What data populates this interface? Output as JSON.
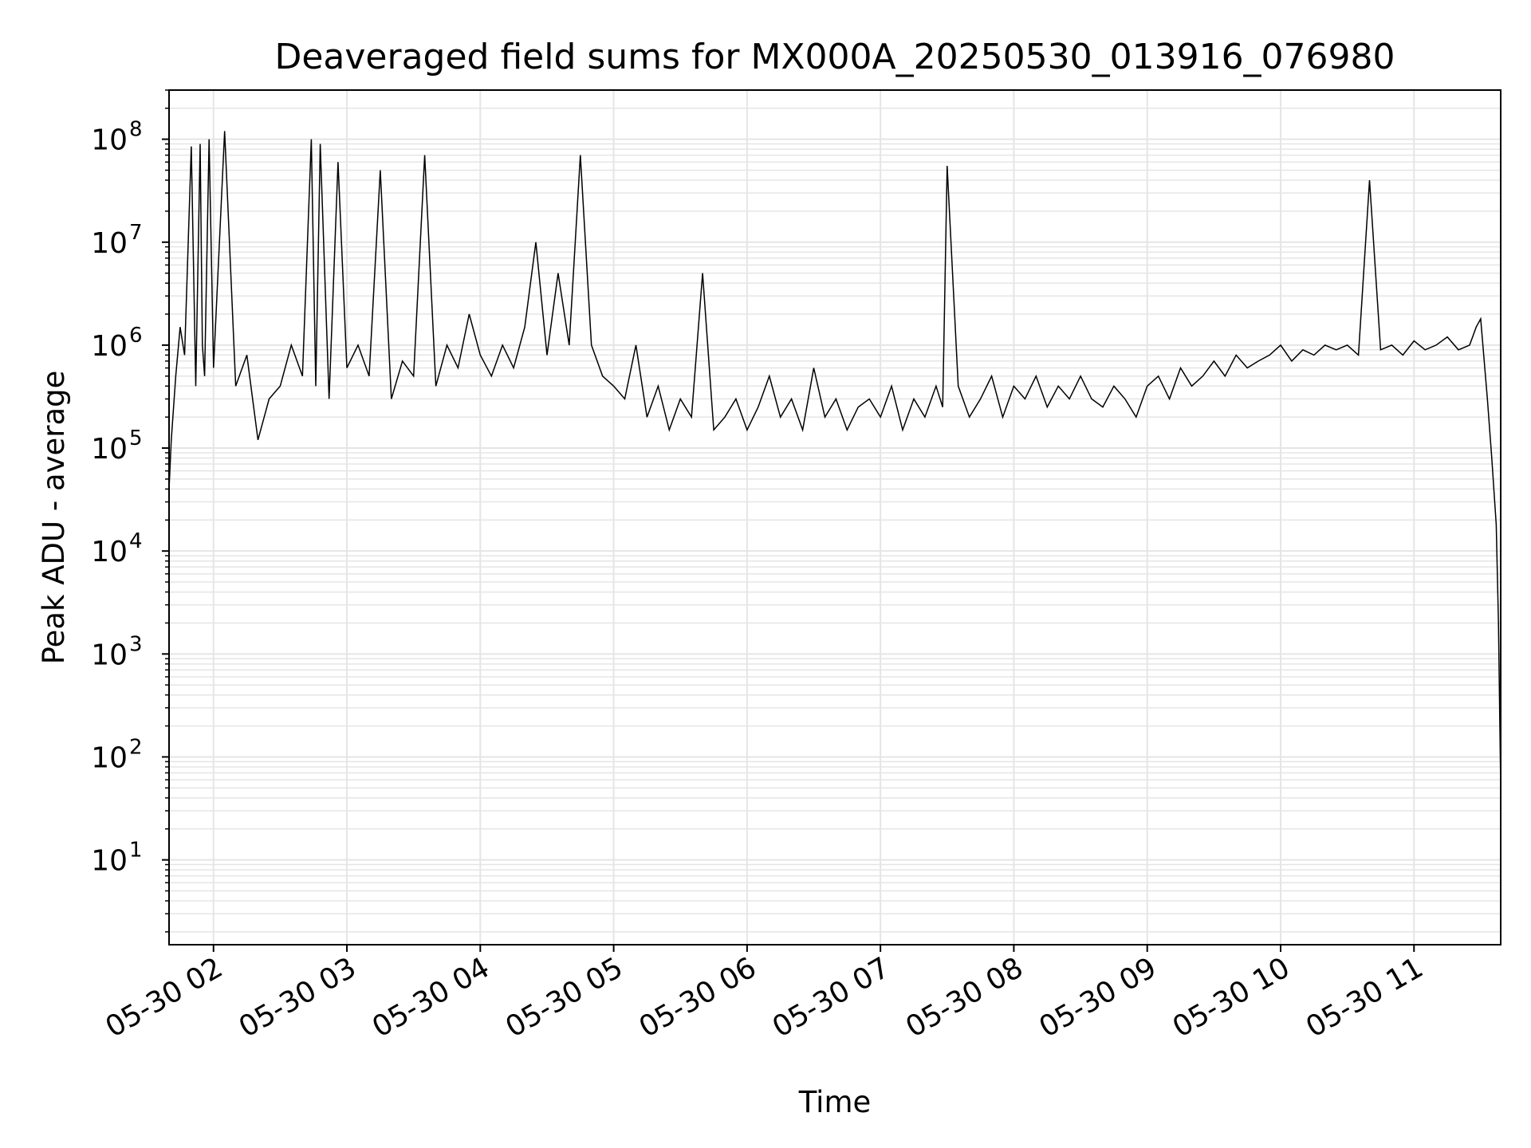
{
  "chart_data": {
    "type": "line",
    "title": "Deaveraged field sums for MX000A_20250530_013916_076980",
    "xlabel": "Time",
    "ylabel": "Peak ADU - average",
    "yscale": "log",
    "grid": true,
    "line_color": "#000000",
    "grid_color": "#e5e5e5",
    "xlim": [
      "2025-05-30 01:40",
      "2025-05-30 11:39"
    ],
    "ylim": [
      1.5,
      300000000.0
    ],
    "xticks": [
      {
        "t": "2025-05-30 02:00",
        "label": "05-30 02"
      },
      {
        "t": "2025-05-30 03:00",
        "label": "05-30 03"
      },
      {
        "t": "2025-05-30 04:00",
        "label": "05-30 04"
      },
      {
        "t": "2025-05-30 05:00",
        "label": "05-30 05"
      },
      {
        "t": "2025-05-30 06:00",
        "label": "05-30 06"
      },
      {
        "t": "2025-05-30 07:00",
        "label": "05-30 07"
      },
      {
        "t": "2025-05-30 08:00",
        "label": "05-30 08"
      },
      {
        "t": "2025-05-30 09:00",
        "label": "05-30 09"
      },
      {
        "t": "2025-05-30 10:00",
        "label": "05-30 10"
      },
      {
        "t": "2025-05-30 11:00",
        "label": "05-30 11"
      }
    ],
    "yticks": [
      {
        "value": 10,
        "base": "10",
        "exp": "1"
      },
      {
        "value": 100,
        "base": "10",
        "exp": "2"
      },
      {
        "value": 1000,
        "base": "10",
        "exp": "3"
      },
      {
        "value": 10000,
        "base": "10",
        "exp": "4"
      },
      {
        "value": 100000,
        "base": "10",
        "exp": "5"
      },
      {
        "value": 1000000,
        "base": "10",
        "exp": "6"
      },
      {
        "value": 10000000,
        "base": "10",
        "exp": "7"
      },
      {
        "value": 100000000,
        "base": "10",
        "exp": "8"
      }
    ],
    "series": [
      {
        "x": [
          "2025-05-30 01:40",
          "2025-05-30 01:41",
          "2025-05-30 01:43",
          "2025-05-30 01:45",
          "2025-05-30 01:47",
          "2025-05-30 01:50",
          "2025-05-30 01:52",
          "2025-05-30 01:54",
          "2025-05-30 01:55",
          "2025-05-30 01:56",
          "2025-05-30 01:58",
          "2025-05-30 02:00",
          "2025-05-30 02:05",
          "2025-05-30 02:10",
          "2025-05-30 02:15",
          "2025-05-30 02:20",
          "2025-05-30 02:25",
          "2025-05-30 02:30",
          "2025-05-30 02:35",
          "2025-05-30 02:40",
          "2025-05-30 02:44",
          "2025-05-30 02:46",
          "2025-05-30 02:48",
          "2025-05-30 02:52",
          "2025-05-30 02:56",
          "2025-05-30 03:00",
          "2025-05-30 03:05",
          "2025-05-30 03:10",
          "2025-05-30 03:15",
          "2025-05-30 03:20",
          "2025-05-30 03:25",
          "2025-05-30 03:30",
          "2025-05-30 03:35",
          "2025-05-30 03:40",
          "2025-05-30 03:45",
          "2025-05-30 03:50",
          "2025-05-30 03:55",
          "2025-05-30 04:00",
          "2025-05-30 04:05",
          "2025-05-30 04:10",
          "2025-05-30 04:15",
          "2025-05-30 04:20",
          "2025-05-30 04:25",
          "2025-05-30 04:30",
          "2025-05-30 04:35",
          "2025-05-30 04:40",
          "2025-05-30 04:45",
          "2025-05-30 04:50",
          "2025-05-30 04:55",
          "2025-05-30 05:00",
          "2025-05-30 05:05",
          "2025-05-30 05:10",
          "2025-05-30 05:15",
          "2025-05-30 05:20",
          "2025-05-30 05:25",
          "2025-05-30 05:30",
          "2025-05-30 05:35",
          "2025-05-30 05:40",
          "2025-05-30 05:45",
          "2025-05-30 05:50",
          "2025-05-30 05:55",
          "2025-05-30 06:00",
          "2025-05-30 06:05",
          "2025-05-30 06:10",
          "2025-05-30 06:15",
          "2025-05-30 06:20",
          "2025-05-30 06:25",
          "2025-05-30 06:30",
          "2025-05-30 06:35",
          "2025-05-30 06:40",
          "2025-05-30 06:45",
          "2025-05-30 06:50",
          "2025-05-30 06:55",
          "2025-05-30 07:00",
          "2025-05-30 07:05",
          "2025-05-30 07:10",
          "2025-05-30 07:15",
          "2025-05-30 07:20",
          "2025-05-30 07:25",
          "2025-05-30 07:28",
          "2025-05-30 07:30",
          "2025-05-30 07:35",
          "2025-05-30 07:40",
          "2025-05-30 07:45",
          "2025-05-30 07:50",
          "2025-05-30 07:55",
          "2025-05-30 08:00",
          "2025-05-30 08:05",
          "2025-05-30 08:10",
          "2025-05-30 08:15",
          "2025-05-30 08:20",
          "2025-05-30 08:25",
          "2025-05-30 08:30",
          "2025-05-30 08:35",
          "2025-05-30 08:40",
          "2025-05-30 08:45",
          "2025-05-30 08:50",
          "2025-05-30 08:55",
          "2025-05-30 09:00",
          "2025-05-30 09:05",
          "2025-05-30 09:10",
          "2025-05-30 09:15",
          "2025-05-30 09:20",
          "2025-05-30 09:25",
          "2025-05-30 09:30",
          "2025-05-30 09:35",
          "2025-05-30 09:40",
          "2025-05-30 09:45",
          "2025-05-30 09:50",
          "2025-05-30 09:55",
          "2025-05-30 10:00",
          "2025-05-30 10:05",
          "2025-05-30 10:10",
          "2025-05-30 10:15",
          "2025-05-30 10:20",
          "2025-05-30 10:25",
          "2025-05-30 10:30",
          "2025-05-30 10:35",
          "2025-05-30 10:40",
          "2025-05-30 10:45",
          "2025-05-30 10:50",
          "2025-05-30 10:55",
          "2025-05-30 11:00",
          "2025-05-30 11:05",
          "2025-05-30 11:10",
          "2025-05-30 11:15",
          "2025-05-30 11:20",
          "2025-05-30 11:25",
          "2025-05-30 11:28",
          "2025-05-30 11:30",
          "2025-05-30 11:33",
          "2025-05-30 11:35",
          "2025-05-30 11:37",
          "2025-05-30 11:38",
          "2025-05-30 11:39"
        ],
        "y": [
          40000,
          120000,
          500000,
          1500000,
          800000,
          85000000,
          400000,
          90000000,
          1000000,
          500000,
          100000000,
          600000,
          120000000,
          400000,
          800000,
          120000,
          300000,
          400000,
          1000000,
          500000,
          100000000,
          400000,
          90000000,
          300000,
          60000000,
          600000,
          1000000,
          500000,
          50000000,
          300000,
          700000,
          500000,
          70000000,
          400000,
          1000000,
          600000,
          2000000,
          800000,
          500000,
          1000000,
          600000,
          1500000,
          10000000,
          800000,
          5000000,
          1000000,
          70000000,
          1000000,
          500000,
          400000,
          300000,
          1000000,
          200000,
          400000,
          150000,
          300000,
          200000,
          5000000,
          150000,
          200000,
          300000,
          150000,
          250000,
          500000,
          200000,
          300000,
          150000,
          600000,
          200000,
          300000,
          150000,
          250000,
          300000,
          200000,
          400000,
          150000,
          300000,
          200000,
          400000,
          250000,
          55000000,
          400000,
          200000,
          300000,
          500000,
          200000,
          400000,
          300000,
          500000,
          250000,
          400000,
          300000,
          500000,
          300000,
          250000,
          400000,
          300000,
          200000,
          400000,
          500000,
          300000,
          600000,
          400000,
          500000,
          700000,
          500000,
          800000,
          600000,
          700000,
          800000,
          1000000,
          700000,
          900000,
          800000,
          1000000,
          900000,
          1000000,
          800000,
          40000000,
          900000,
          1000000,
          800000,
          1100000,
          900000,
          1000000,
          1200000,
          900000,
          1000000,
          1500000,
          1800000,
          300000,
          80000,
          18000,
          2000,
          50
        ]
      }
    ]
  }
}
